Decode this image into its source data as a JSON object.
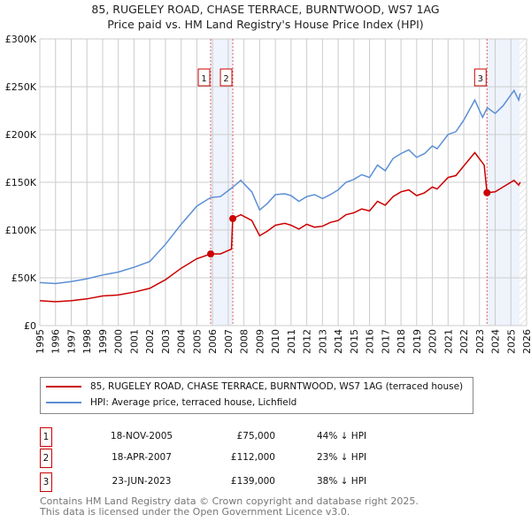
{
  "title_line1": "85, RUGELEY ROAD, CHASE TERRACE, BURNTWOOD, WS7 1AG",
  "title_line2": "Price paid vs. HM Land Registry's House Price Index (HPI)",
  "chart_data": {
    "type": "line",
    "title": "85, RUGELEY ROAD, CHASE TERRACE, BURNTWOOD, WS7 1AG — Price paid vs. HM Land Registry's House Price Index (HPI)",
    "xlim": [
      1995,
      2026
    ],
    "ylim": [
      0,
      300000
    ],
    "x_ticks": [
      "1995",
      "1996",
      "1997",
      "1998",
      "1999",
      "2000",
      "2001",
      "2002",
      "2003",
      "2004",
      "2005",
      "2006",
      "2007",
      "2008",
      "2009",
      "2010",
      "2011",
      "2012",
      "2013",
      "2014",
      "2015",
      "2016",
      "2017",
      "2018",
      "2019",
      "2020",
      "2021",
      "2022",
      "2023",
      "2024",
      "2025",
      "2026"
    ],
    "y_ticks": [
      {
        "v": 0,
        "label": "£0"
      },
      {
        "v": 50000,
        "label": "£50K"
      },
      {
        "v": 100000,
        "label": "£100K"
      },
      {
        "v": 150000,
        "label": "£150K"
      },
      {
        "v": 200000,
        "label": "£200K"
      },
      {
        "v": 250000,
        "label": "£250K"
      },
      {
        "v": 300000,
        "label": "£300K"
      }
    ],
    "grid": true,
    "series": [
      {
        "name": "85, RUGELEY ROAD, CHASE TERRACE, BURNTWOOD, WS7 1AG (terraced house)",
        "color": "#cc0000",
        "x": [
          1995,
          1996,
          1997,
          1998,
          1999,
          2000,
          2001,
          2002,
          2003,
          2004,
          2005,
          2005.88,
          2006.5,
          2007.2,
          2007.29,
          2007.8,
          2008.5,
          2009,
          2009.5,
          2010,
          2010.6,
          2011,
          2011.5,
          2012,
          2012.5,
          2013,
          2013.5,
          2014,
          2014.5,
          2015,
          2015.5,
          2016,
          2016.5,
          2017,
          2017.5,
          2018,
          2018.5,
          2019,
          2019.5,
          2020,
          2020.3,
          2021,
          2021.5,
          2022,
          2022.7,
          2023.3,
          2023.48,
          2024,
          2024.5,
          2025.2,
          2025.5,
          2025.6
        ],
        "values": [
          26000,
          25000,
          26000,
          28000,
          31000,
          32000,
          35000,
          39000,
          48000,
          60000,
          70000,
          75000,
          75000,
          80000,
          112000,
          116000,
          110000,
          94000,
          99000,
          105000,
          107000,
          105000,
          101000,
          106000,
          103000,
          104000,
          108000,
          110000,
          116000,
          118000,
          122000,
          120000,
          130000,
          126000,
          135000,
          140000,
          142000,
          136000,
          139000,
          145000,
          143000,
          155000,
          157000,
          167000,
          181000,
          168000,
          139000,
          140000,
          145000,
          152000,
          147000,
          150000
        ]
      },
      {
        "name": "HPI: Average price, terraced house, Lichfield",
        "color": "#5b8fd4",
        "x": [
          1995,
          1996,
          1997,
          1998,
          1999,
          2000,
          2001,
          2002,
          2003,
          2004,
          2005,
          2005.88,
          2006.5,
          2007.3,
          2007.8,
          2008.5,
          2009,
          2009.5,
          2010,
          2010.6,
          2011,
          2011.5,
          2012,
          2012.5,
          2013,
          2013.5,
          2014,
          2014.5,
          2015,
          2015.5,
          2016,
          2016.5,
          2017,
          2017.5,
          2018,
          2018.5,
          2019,
          2019.5,
          2020,
          2020.3,
          2021,
          2021.5,
          2022,
          2022.7,
          2023.2,
          2023.5,
          2024,
          2024.5,
          2025.2,
          2025.5,
          2025.6
        ],
        "values": [
          45000,
          44000,
          46000,
          49000,
          53000,
          56000,
          61000,
          67000,
          85000,
          106000,
          125000,
          134000,
          135000,
          145000,
          152000,
          140000,
          121000,
          128000,
          137000,
          138000,
          136000,
          130000,
          135000,
          137000,
          133000,
          137000,
          142000,
          150000,
          153000,
          158000,
          155000,
          168000,
          162000,
          175000,
          180000,
          184000,
          176000,
          180000,
          188000,
          185000,
          200000,
          203000,
          215000,
          236000,
          218000,
          228000,
          222000,
          230000,
          246000,
          236000,
          243000
        ]
      }
    ],
    "sales": [
      {
        "id": "1",
        "x": 2005.88,
        "value": 75000
      },
      {
        "id": "2",
        "x": 2007.29,
        "value": 112000
      },
      {
        "id": "3",
        "x": 2023.48,
        "value": 139000
      }
    ],
    "forecast_start": 2025.55,
    "legend_position": "below"
  },
  "legend": [
    {
      "label": "85, RUGELEY ROAD, CHASE TERRACE, BURNTWOOD, WS7 1AG (terraced house)",
      "color": "#cc0000"
    },
    {
      "label": "HPI: Average price, terraced house, Lichfield",
      "color": "#5b8fd4"
    }
  ],
  "transactions": [
    {
      "id": "1",
      "date": "18-NOV-2005",
      "price": "£75,000",
      "hpi": "44% ↓ HPI"
    },
    {
      "id": "2",
      "date": "18-APR-2007",
      "price": "£112,000",
      "hpi": "23% ↓ HPI"
    },
    {
      "id": "3",
      "date": "23-JUN-2023",
      "price": "£139,000",
      "hpi": "38% ↓ HPI"
    }
  ],
  "footer_line1": "Contains HM Land Registry data © Crown copyright and database right 2025.",
  "footer_line2": "This data is licensed under the Open Government Licence v3.0."
}
